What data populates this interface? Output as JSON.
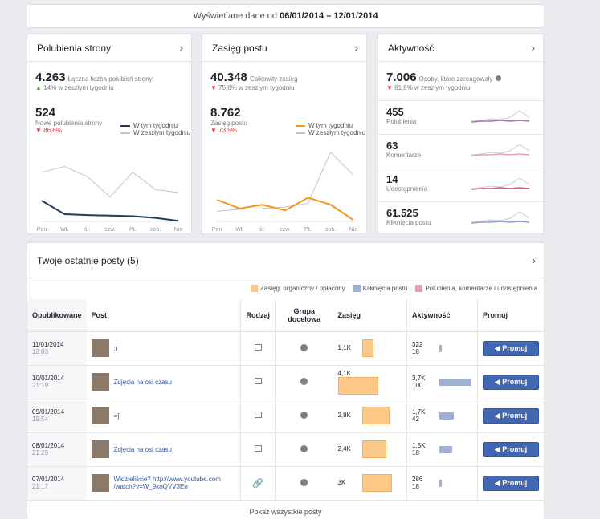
{
  "date_range": {
    "prefix": "Wyświetlane dane od",
    "range": "06/01/2014 – 12/01/2014"
  },
  "panels": {
    "likes": {
      "title": "Polubienia strony",
      "total": "4.263",
      "total_label": "Łączna liczba polubień strony",
      "total_change": "14% w zeszłym tygodniu",
      "new": "524",
      "new_label": "Nowe polubienia strony",
      "new_change": "86,6%",
      "legend_this": "W tym tygodniu",
      "legend_last": "W zeszłym tygodniu",
      "color_this": "#23395d",
      "color_last": "#c4c4c4"
    },
    "reach": {
      "title": "Zasięg postu",
      "total": "40.348",
      "total_label": "Całkowity zasięg",
      "total_change": "75,8% w zeszłym tygodniu",
      "new": "8.762",
      "new_label": "Zasięg postu",
      "new_change": "73,5%",
      "legend_this": "W tym tygodniu",
      "legend_last": "W zeszłym tygodniu",
      "color_this": "#f7931e",
      "color_last": "#c4c4c4"
    },
    "activity": {
      "title": "Aktywność",
      "total": "7.006",
      "total_label": "Osoby, które zareagowały",
      "total_change": "81,8% w zeszłym tygodniu",
      "rows": [
        {
          "value": "455",
          "label": "Polubienia",
          "color": "#a473b6"
        },
        {
          "value": "63",
          "label": "Komentarze",
          "color": "#e7a0b0"
        },
        {
          "value": "14",
          "label": "Udostępnienia",
          "color": "#cf5b7a"
        },
        {
          "value": "61.525",
          "label": "Kliknięcia postu",
          "color": "#8ea3c9"
        }
      ]
    },
    "days": [
      "Pon",
      "Wt.",
      "śr.",
      "czw.",
      "Pt.",
      "sob.",
      "Nie"
    ]
  },
  "charts": {
    "likes": {
      "this": [
        0.72,
        0.25,
        0.22,
        0.2,
        0.18,
        0.12,
        0.02
      ],
      "last": [
        1.7,
        1.9,
        1.55,
        0.85,
        1.7,
        1.1,
        1.0
      ]
    },
    "reach": {
      "this": [
        0.75,
        0.45,
        0.58,
        0.38,
        0.82,
        0.58,
        0.05
      ],
      "last": [
        0.35,
        0.42,
        0.44,
        0.5,
        0.62,
        2.4,
        1.6
      ]
    }
  },
  "posts_section": {
    "title": "Twoje ostatnie posty (5)",
    "legend": [
      {
        "label": "Zasięg: organiczny / opłacony",
        "color": "#fcc888"
      },
      {
        "label": "Kliknięcia postu",
        "color": "#9fb0d2"
      },
      {
        "label": "Polubienia, komentarze i udostępnienia",
        "color": "#e7a0b0"
      }
    ],
    "columns": {
      "published": "Opublikowane",
      "post": "Post",
      "type": "Rodzaj",
      "target": "Grupa docelowa",
      "reach": "Zasięg",
      "engagement": "Aktywność",
      "promote": "Promuj"
    },
    "rows": [
      {
        "date": "11/01/2014",
        "time": "12:03",
        "text": ":)",
        "type_icon": "photo-icon",
        "reach": "1,1K",
        "reach_frac": 0.27,
        "eng_top": "322",
        "eng_bottom": "18",
        "eng_frac": 0.05,
        "promote": "Promuj"
      },
      {
        "date": "10/01/2014",
        "time": "21:19",
        "text": "Zdjęcia na osi czasu",
        "type_icon": "photo-icon",
        "reach": "4,1K",
        "reach_frac": 1.0,
        "eng_top": "3,7K",
        "eng_bottom": "100",
        "eng_frac": 1.0,
        "promote": "Promuj"
      },
      {
        "date": "09/01/2014",
        "time": "19:54",
        "text": "=]",
        "type_icon": "photo-icon",
        "reach": "2,8K",
        "reach_frac": 0.68,
        "eng_top": "1,7K",
        "eng_bottom": "42",
        "eng_frac": 0.46,
        "promote": "Promuj"
      },
      {
        "date": "08/01/2014",
        "time": "21:29",
        "text": "Zdjęcia na osi czasu",
        "type_icon": "photo-icon",
        "reach": "2,4K",
        "reach_frac": 0.59,
        "eng_top": "1,5K",
        "eng_bottom": "18",
        "eng_frac": 0.4,
        "promote": "Promuj"
      },
      {
        "date": "07/01/2014",
        "time": "21:17",
        "text": "Widzieliście? http://www.youtube.com /watch?v=W_9koQVV3Eo",
        "type_icon": "link-icon",
        "reach": "3K",
        "reach_frac": 0.73,
        "eng_top": "286",
        "eng_bottom": "18",
        "eng_frac": 0.04,
        "promote": "Promuj"
      }
    ],
    "show_all": "Pokaż wszystkie posty"
  }
}
